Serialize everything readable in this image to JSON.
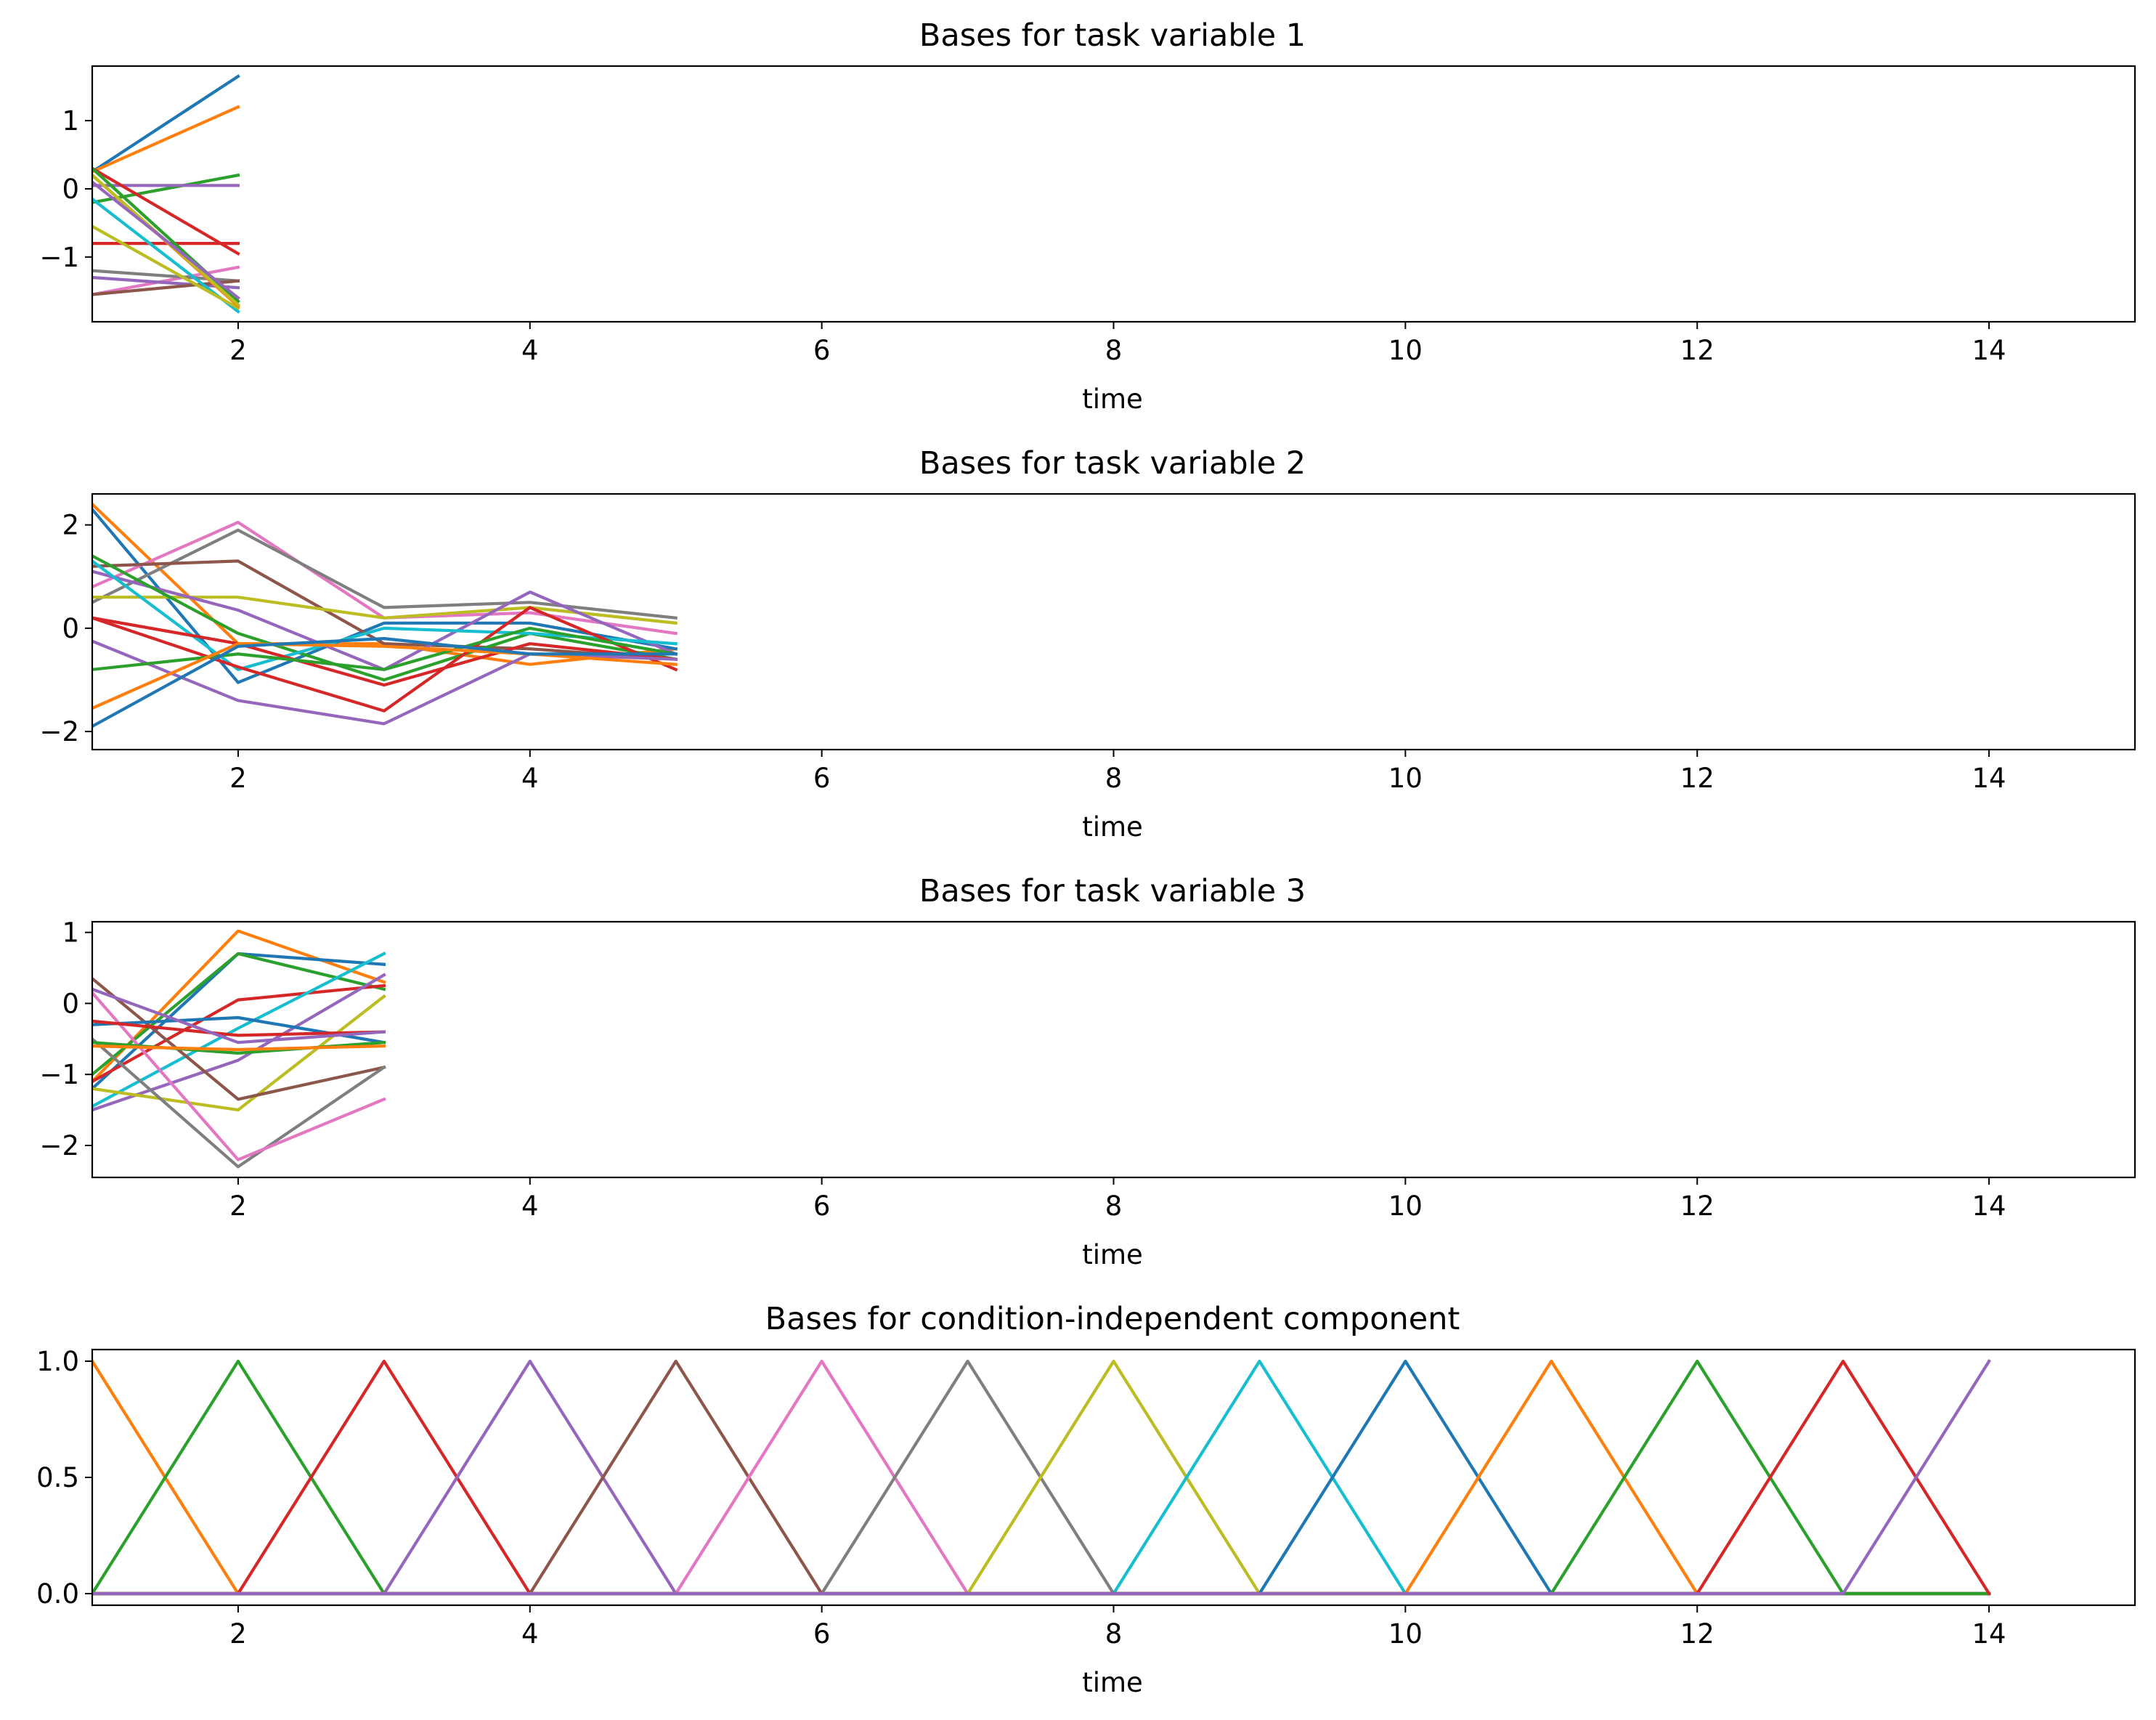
{
  "colors": [
    "#1f77b4",
    "#ff7f0e",
    "#2ca02c",
    "#d62728",
    "#9467bd",
    "#8c564b",
    "#e377c2",
    "#7f7f7f",
    "#bcbd22",
    "#17becf"
  ],
  "chart_data": [
    {
      "type": "line",
      "title": "Bases for task variable 1",
      "xlabel": "time",
      "xlim": [
        1,
        15
      ],
      "ylim": [
        -1.95,
        1.8
      ],
      "xticks": [
        2,
        4,
        6,
        8,
        10,
        12,
        14
      ],
      "xtick_labels": [
        "2",
        "4",
        "6",
        "8",
        "10",
        "12",
        "14"
      ],
      "yticks": [
        -1,
        0,
        1
      ],
      "ytick_labels": [
        "−1",
        "0",
        "1"
      ],
      "x": [
        1,
        2
      ],
      "series": [
        {
          "color": "#1f77b4",
          "values": [
            0.25,
            1.65
          ]
        },
        {
          "color": "#ff7f0e",
          "values": [
            0.25,
            1.2
          ]
        },
        {
          "color": "#2ca02c",
          "values": [
            -0.2,
            0.2
          ]
        },
        {
          "color": "#9467bd",
          "values": [
            0.05,
            0.05
          ]
        },
        {
          "color": "#d62728",
          "values": [
            -0.8,
            -0.8
          ]
        },
        {
          "color": "#d62728",
          "values": [
            0.3,
            -0.95
          ]
        },
        {
          "color": "#e377c2",
          "values": [
            -1.55,
            -1.15
          ]
        },
        {
          "color": "#7f7f7f",
          "values": [
            -1.2,
            -1.35
          ]
        },
        {
          "color": "#9467bd",
          "values": [
            -1.3,
            -1.45
          ]
        },
        {
          "color": "#8c564b",
          "values": [
            -1.55,
            -1.35
          ]
        },
        {
          "color": "#2ca02c",
          "values": [
            0.3,
            -1.65
          ]
        },
        {
          "color": "#17becf",
          "values": [
            -0.15,
            -1.8
          ]
        },
        {
          "color": "#bcbd22",
          "values": [
            -0.55,
            -1.75
          ]
        },
        {
          "color": "#ff7f0e",
          "values": [
            0.2,
            -1.72
          ]
        },
        {
          "color": "#bcbd22",
          "values": [
            0.2,
            -1.7
          ]
        },
        {
          "color": "#9467bd",
          "values": [
            0.1,
            -1.6
          ]
        }
      ]
    },
    {
      "type": "line",
      "title": "Bases for task variable 2",
      "xlabel": "time",
      "xlim": [
        1,
        15
      ],
      "ylim": [
        -2.35,
        2.6
      ],
      "xticks": [
        2,
        4,
        6,
        8,
        10,
        12,
        14
      ],
      "xtick_labels": [
        "2",
        "4",
        "6",
        "8",
        "10",
        "12",
        "14"
      ],
      "yticks": [
        -2,
        0,
        2
      ],
      "ytick_labels": [
        "−2",
        "0",
        "2"
      ],
      "x": [
        1,
        2,
        3,
        4,
        5
      ],
      "series": [
        {
          "color": "#ff7f0e",
          "values": [
            2.4,
            -0.3,
            -0.3,
            -0.7,
            -0.4
          ]
        },
        {
          "color": "#1f77b4",
          "values": [
            2.3,
            -1.05,
            0.1,
            0.1,
            -0.4
          ]
        },
        {
          "color": "#e377c2",
          "values": [
            0.8,
            2.05,
            0.2,
            0.3,
            -0.1
          ]
        },
        {
          "color": "#7f7f7f",
          "values": [
            0.5,
            1.9,
            0.4,
            0.5,
            0.2
          ]
        },
        {
          "color": "#8c564b",
          "values": [
            1.2,
            1.3,
            -0.3,
            -0.4,
            -0.6
          ]
        },
        {
          "color": "#bcbd22",
          "values": [
            0.6,
            0.6,
            0.2,
            0.4,
            0.1
          ]
        },
        {
          "color": "#9467bd",
          "values": [
            1.1,
            0.35,
            -0.8,
            0.7,
            -0.5
          ]
        },
        {
          "color": "#2ca02c",
          "values": [
            1.4,
            -0.1,
            -1.0,
            -0.1,
            -0.6
          ]
        },
        {
          "color": "#17becf",
          "values": [
            1.3,
            -0.8,
            0.0,
            -0.1,
            -0.3
          ]
        },
        {
          "color": "#d62728",
          "values": [
            0.2,
            -0.75,
            -1.6,
            0.4,
            -0.8
          ]
        },
        {
          "color": "#d62728",
          "values": [
            0.2,
            -0.3,
            -1.1,
            -0.3,
            -0.6
          ]
        },
        {
          "color": "#9467bd",
          "values": [
            -0.25,
            -1.4,
            -1.85,
            -0.5,
            -0.6
          ]
        },
        {
          "color": "#2ca02c",
          "values": [
            -0.8,
            -0.5,
            -0.8,
            0.0,
            -0.5
          ]
        },
        {
          "color": "#ff7f0e",
          "values": [
            -1.55,
            -0.3,
            -0.35,
            -0.5,
            -0.7
          ]
        },
        {
          "color": "#1f77b4",
          "values": [
            -1.9,
            -0.35,
            -0.2,
            -0.5,
            -0.5
          ]
        }
      ]
    },
    {
      "type": "line",
      "title": "Bases for task variable 3",
      "xlabel": "time",
      "xlim": [
        1,
        15
      ],
      "ylim": [
        -2.45,
        1.15
      ],
      "xticks": [
        2,
        4,
        6,
        8,
        10,
        12,
        14
      ],
      "xtick_labels": [
        "2",
        "4",
        "6",
        "8",
        "10",
        "12",
        "14"
      ],
      "yticks": [
        -2,
        -1,
        0,
        1
      ],
      "ytick_labels": [
        "−2",
        "−1",
        "0",
        "1"
      ],
      "x": [
        1,
        2,
        3
      ],
      "series": [
        {
          "color": "#ff7f0e",
          "values": [
            -1.1,
            1.02,
            0.3
          ]
        },
        {
          "color": "#1f77b4",
          "values": [
            -1.2,
            0.7,
            0.55
          ]
        },
        {
          "color": "#2ca02c",
          "values": [
            -1.0,
            0.7,
            0.2
          ]
        },
        {
          "color": "#d62728",
          "values": [
            -1.1,
            0.05,
            0.25
          ]
        },
        {
          "color": "#17becf",
          "values": [
            -1.45,
            -0.35,
            0.7
          ]
        },
        {
          "color": "#9467bd",
          "values": [
            -1.5,
            -0.8,
            0.4
          ]
        },
        {
          "color": "#bcbd22",
          "values": [
            -1.2,
            -1.5,
            0.1
          ]
        },
        {
          "color": "#8c564b",
          "values": [
            0.35,
            -1.35,
            -0.9
          ]
        },
        {
          "color": "#7f7f7f",
          "values": [
            -0.5,
            -2.3,
            -0.9
          ]
        },
        {
          "color": "#e377c2",
          "values": [
            0.15,
            -2.2,
            -1.35
          ]
        },
        {
          "color": "#1f77b4",
          "values": [
            -0.3,
            -0.2,
            -0.55
          ]
        },
        {
          "color": "#d62728",
          "values": [
            -0.25,
            -0.45,
            -0.4
          ]
        },
        {
          "color": "#9467bd",
          "values": [
            0.2,
            -0.55,
            -0.4
          ]
        },
        {
          "color": "#2ca02c",
          "values": [
            -0.55,
            -0.7,
            -0.55
          ]
        },
        {
          "color": "#ff7f0e",
          "values": [
            -0.6,
            -0.65,
            -0.6
          ]
        }
      ]
    },
    {
      "type": "line",
      "title": "Bases for condition-independent component",
      "xlabel": "time",
      "xlim": [
        1,
        15
      ],
      "ylim": [
        -0.05,
        1.05
      ],
      "xticks": [
        2,
        4,
        6,
        8,
        10,
        12,
        14
      ],
      "xtick_labels": [
        "2",
        "4",
        "6",
        "8",
        "10",
        "12",
        "14"
      ],
      "yticks": [
        0.0,
        0.5,
        1.0
      ],
      "ytick_labels": [
        "0.0",
        "0.5",
        "1.0"
      ],
      "x": [
        1,
        2,
        3,
        4,
        5,
        6,
        7,
        8,
        9,
        10,
        11,
        12,
        13,
        14
      ],
      "basis": "triangular",
      "series": [
        {
          "color": "#ff7f0e",
          "peak": 1
        },
        {
          "color": "#2ca02c",
          "peak": 2
        },
        {
          "color": "#d62728",
          "peak": 3
        },
        {
          "color": "#9467bd",
          "peak": 4
        },
        {
          "color": "#8c564b",
          "peak": 5
        },
        {
          "color": "#e377c2",
          "peak": 6
        },
        {
          "color": "#7f7f7f",
          "peak": 7
        },
        {
          "color": "#bcbd22",
          "peak": 8
        },
        {
          "color": "#17becf",
          "peak": 9
        },
        {
          "color": "#1f77b4",
          "peak": 10
        },
        {
          "color": "#ff7f0e",
          "peak": 11
        },
        {
          "color": "#2ca02c",
          "peak": 12
        },
        {
          "color": "#d62728",
          "peak": 13
        },
        {
          "color": "#9467bd",
          "peak": 14
        }
      ]
    }
  ]
}
